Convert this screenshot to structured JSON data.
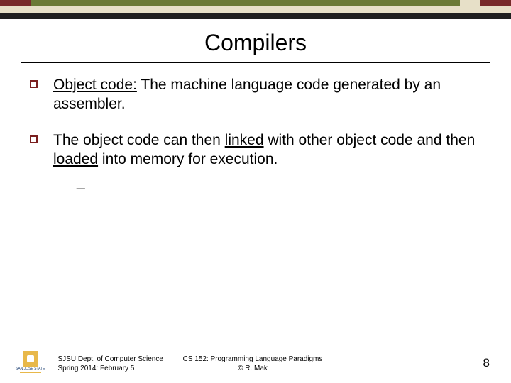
{
  "topBar": {
    "rows": [
      {
        "segments": [
          {
            "width": "6%",
            "color": "#772a2a"
          },
          {
            "width": "84%",
            "color": "#6b7a36"
          },
          {
            "width": "4%",
            "color": "#e7e0c8"
          },
          {
            "width": "6%",
            "color": "#772a2a"
          }
        ]
      },
      {
        "segments": [
          {
            "width": "100%",
            "color": "#e7e0c8"
          }
        ]
      },
      {
        "segments": [
          {
            "width": "100%",
            "color": "#1f1f1f"
          }
        ]
      }
    ]
  },
  "title": "Compilers",
  "bullets": [
    {
      "parts": [
        {
          "text": "Object code:",
          "underlined": true
        },
        {
          "text": " The machine language code generated by an assembler.",
          "underlined": false
        }
      ]
    },
    {
      "parts": [
        {
          "text": "The object code can then ",
          "underlined": false
        },
        {
          "text": "linked",
          "underlined": true
        },
        {
          "text": " with other object code and then ",
          "underlined": false
        },
        {
          "text": "loaded",
          "underlined": true
        },
        {
          "text": " into memory for execution.",
          "underlined": false
        }
      ],
      "subDash": "_"
    }
  ],
  "footer": {
    "leftLine1": "SJSU Dept. of Computer Science",
    "leftLine2": "Spring 2014: February 5",
    "centerLine1": "CS 152: Programming Language Paradigms",
    "centerLine2": "© R. Mak",
    "logoText": "SAN JOSÉ STATE",
    "pageNumber": "8"
  }
}
